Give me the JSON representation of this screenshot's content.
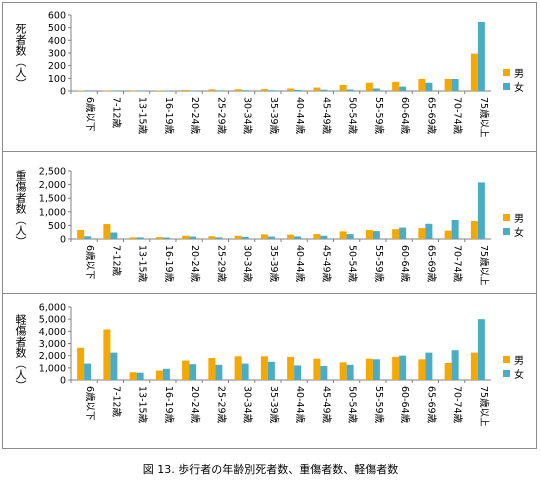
{
  "caption": "図 13. 歩行者の年齢別死者数、重傷者数、軽傷者数",
  "legend": {
    "male": "男",
    "female": "女"
  },
  "colors": {
    "male": "#F5A800",
    "female": "#4BACC6",
    "axis": "#808080",
    "grid": "#d9d9d9"
  },
  "chart_data": [
    {
      "type": "bar",
      "ylabel": "死者数（人）",
      "ylim": [
        0,
        600
      ],
      "yticks": [
        0,
        100,
        200,
        300,
        400,
        500,
        600
      ],
      "categories": [
        "6歳以下",
        "7-12歳",
        "13-15歳",
        "16-19歳",
        "20-24歳",
        "25-29歳",
        "30-34歳",
        "35-39歳",
        "40-44歳",
        "45-49歳",
        "50-54歳",
        "55-59歳",
        "60-64歳",
        "65-69歳",
        "70-74歳",
        "75歳以上"
      ],
      "series": [
        {
          "name": "男",
          "values": [
            3,
            2,
            2,
            4,
            8,
            13,
            14,
            15,
            20,
            27,
            48,
            65,
            72,
            95,
            95,
            295
          ]
        },
        {
          "name": "女",
          "values": [
            5,
            2,
            1,
            2,
            2,
            5,
            6,
            6,
            8,
            10,
            12,
            20,
            35,
            65,
            95,
            545
          ]
        }
      ]
    },
    {
      "type": "bar",
      "ylabel": "重傷者数（人）",
      "ylim": [
        0,
        2500
      ],
      "yticks": [
        0,
        500,
        1000,
        1500,
        2000,
        2500
      ],
      "categories": [
        "6歳以下",
        "7-12歳",
        "13-15歳",
        "16-19歳",
        "20-24歳",
        "25-29歳",
        "30-34歳",
        "35-39歳",
        "40-44歳",
        "45-49歳",
        "50-54歳",
        "55-59歳",
        "60-64歳",
        "65-69歳",
        "70-74歳",
        "75歳以上"
      ],
      "series": [
        {
          "name": "男",
          "values": [
            330,
            550,
            60,
            70,
            120,
            100,
            120,
            170,
            160,
            180,
            280,
            330,
            360,
            400,
            310,
            660
          ]
        },
        {
          "name": "女",
          "values": [
            100,
            240,
            60,
            55,
            90,
            60,
            80,
            90,
            95,
            120,
            180,
            290,
            420,
            560,
            700,
            2080
          ]
        }
      ]
    },
    {
      "type": "bar",
      "ylabel": "軽傷者数（人）",
      "ylim": [
        0,
        6000
      ],
      "yticks": [
        0,
        1000,
        2000,
        3000,
        4000,
        5000,
        6000
      ],
      "categories": [
        "6歳以下",
        "7-12歳",
        "13-15歳",
        "16-19歳",
        "20-24歳",
        "25-29歳",
        "30-34歳",
        "35-39歳",
        "40-44歳",
        "45-49歳",
        "50-54歳",
        "55-59歳",
        "60-64歳",
        "65-69歳",
        "70-74歳",
        "75歳以上"
      ],
      "series": [
        {
          "name": "男",
          "values": [
            2650,
            4150,
            640,
            780,
            1600,
            1800,
            1950,
            1950,
            1900,
            1750,
            1450,
            1750,
            1900,
            1700,
            1400,
            2250
          ]
        },
        {
          "name": "女",
          "values": [
            1350,
            2250,
            600,
            920,
            1300,
            1250,
            1350,
            1500,
            1200,
            1150,
            1250,
            1700,
            2000,
            2250,
            2450,
            5000
          ]
        }
      ]
    }
  ]
}
